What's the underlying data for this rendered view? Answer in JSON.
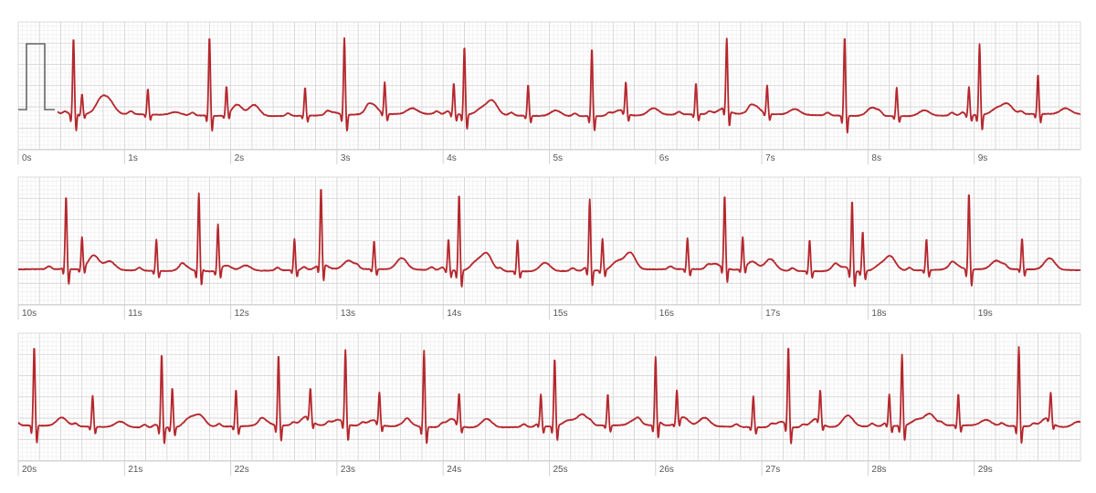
{
  "colors": {
    "trace": "#b5272d",
    "grid_minor": "#ececec",
    "grid_major": "#d2d2d2",
    "calibration": "#666666",
    "label": "#555555"
  },
  "chart_data": {
    "type": "line",
    "title": "",
    "xlabel": "",
    "ylabel": "",
    "seconds_per_strip": 10,
    "strips": [
      {
        "tick_labels": [
          "0s",
          "1s",
          "2s",
          "3s",
          "4s",
          "5s",
          "6s",
          "7s",
          "8s",
          "9s"
        ],
        "beats": [
          {
            "t": 0.52,
            "r": 1.35,
            "p": 0.05,
            "tw": 0.25
          },
          {
            "t": 0.6,
            "r": 0.35,
            "p": 0.05,
            "tw": 0.2
          },
          {
            "t": 1.22,
            "r": 0.45,
            "p": 0.05,
            "tw": 0.05
          },
          {
            "t": 1.8,
            "r": 1.35,
            "p": 0.05,
            "tw": 0.2
          },
          {
            "t": 1.96,
            "r": 0.5,
            "p": 0.05,
            "tw": 0.2
          },
          {
            "t": 2.7,
            "r": 0.5,
            "p": 0.05,
            "tw": 0.05
          },
          {
            "t": 3.07,
            "r": 1.35,
            "p": 0.05,
            "tw": 0.18
          },
          {
            "t": 3.45,
            "r": 0.55,
            "p": 0.05,
            "tw": 0.1
          },
          {
            "t": 4.1,
            "r": 0.55,
            "p": 0.05,
            "tw": 0.1
          },
          {
            "t": 4.2,
            "r": 1.2,
            "p": 0.05,
            "tw": 0.25
          },
          {
            "t": 4.8,
            "r": 0.55,
            "p": 0.05,
            "tw": 0.1
          },
          {
            "t": 5.4,
            "r": 1.2,
            "p": 0.05,
            "tw": 0.1
          },
          {
            "t": 5.72,
            "r": 0.55,
            "p": 0.05,
            "tw": 0.12
          },
          {
            "t": 6.38,
            "r": 0.55,
            "p": 0.05,
            "tw": 0.1
          },
          {
            "t": 6.67,
            "r": 1.25,
            "p": 0.05,
            "tw": 0.15
          },
          {
            "t": 7.05,
            "r": 0.5,
            "p": 0.05,
            "tw": 0.1
          },
          {
            "t": 7.78,
            "r": 1.4,
            "p": 0.05,
            "tw": 0.15
          },
          {
            "t": 8.27,
            "r": 0.5,
            "p": 0.05,
            "tw": 0.1
          },
          {
            "t": 8.95,
            "r": 0.5,
            "p": 0.05,
            "tw": 0.1
          },
          {
            "t": 9.05,
            "r": 1.25,
            "p": 0.05,
            "tw": 0.18
          },
          {
            "t": 9.6,
            "r": 0.7,
            "p": 0.05,
            "tw": 0.1
          }
        ]
      },
      {
        "tick_labels": [
          "10s",
          "11s",
          "12s",
          "13s",
          "14s",
          "15s",
          "16s",
          "17s",
          "18s",
          "19s"
        ],
        "beats": [
          {
            "t": 0.45,
            "r": 1.25,
            "p": 0.05,
            "tw": 0.25
          },
          {
            "t": 0.6,
            "r": 0.55,
            "p": 0.05,
            "tw": 0.15
          },
          {
            "t": 1.3,
            "r": 0.55,
            "p": 0.05,
            "tw": 0.1
          },
          {
            "t": 1.7,
            "r": 1.35,
            "p": 0.05,
            "tw": 0.1
          },
          {
            "t": 1.88,
            "r": 0.8,
            "p": 0.05,
            "tw": 0.1
          },
          {
            "t": 2.6,
            "r": 0.55,
            "p": 0.05,
            "tw": 0.1
          },
          {
            "t": 2.85,
            "r": 1.35,
            "p": 0.05,
            "tw": 0.15
          },
          {
            "t": 3.35,
            "r": 0.5,
            "p": 0.05,
            "tw": 0.2
          },
          {
            "t": 4.05,
            "r": 0.55,
            "p": 0.05,
            "tw": 0.15
          },
          {
            "t": 4.15,
            "r": 1.35,
            "p": 0.05,
            "tw": 0.3
          },
          {
            "t": 4.7,
            "r": 0.55,
            "p": 0.05,
            "tw": 0.15
          },
          {
            "t": 5.38,
            "r": 1.25,
            "p": 0.05,
            "tw": 0.15
          },
          {
            "t": 5.5,
            "r": 0.55,
            "p": 0.05,
            "tw": 0.3
          },
          {
            "t": 6.3,
            "r": 0.55,
            "p": 0.05,
            "tw": 0.1
          },
          {
            "t": 6.65,
            "r": 1.25,
            "p": 0.05,
            "tw": 0.15
          },
          {
            "t": 6.82,
            "r": 0.55,
            "p": 0.05,
            "tw": 0.2
          },
          {
            "t": 7.45,
            "r": 0.55,
            "p": 0.05,
            "tw": 0.1
          },
          {
            "t": 7.85,
            "r": 1.25,
            "p": 0.05,
            "tw": 0.1
          },
          {
            "t": 7.95,
            "r": 0.7,
            "p": 0.05,
            "tw": 0.25
          },
          {
            "t": 8.55,
            "r": 0.55,
            "p": 0.05,
            "tw": 0.1
          },
          {
            "t": 8.95,
            "r": 1.35,
            "p": 0.05,
            "tw": 0.15
          },
          {
            "t": 9.45,
            "r": 0.55,
            "p": 0.05,
            "tw": 0.2
          }
        ]
      },
      {
        "tick_labels": [
          "20s",
          "21s",
          "22s",
          "23s",
          "24s",
          "25s",
          "26s",
          "27s",
          "28s",
          "29s"
        ],
        "beats": [
          {
            "t": 0.15,
            "r": 1.4,
            "p": 0.05,
            "tw": 0.15
          },
          {
            "t": 0.7,
            "r": 0.55,
            "p": 0.05,
            "tw": 0.1
          },
          {
            "t": 1.35,
            "r": 1.3,
            "p": 0.05,
            "tw": 0.15
          },
          {
            "t": 1.45,
            "r": 0.7,
            "p": 0.05,
            "tw": 0.2
          },
          {
            "t": 2.05,
            "r": 0.65,
            "p": 0.05,
            "tw": 0.1
          },
          {
            "t": 2.45,
            "r": 1.25,
            "p": 0.05,
            "tw": 0.15
          },
          {
            "t": 2.75,
            "r": 0.55,
            "p": 0.05,
            "tw": 0.1
          },
          {
            "t": 3.08,
            "r": 1.3,
            "p": 0.05,
            "tw": 0.1
          },
          {
            "t": 3.4,
            "r": 0.55,
            "p": 0.05,
            "tw": 0.1
          },
          {
            "t": 3.82,
            "r": 1.35,
            "p": 0.05,
            "tw": 0.15
          },
          {
            "t": 4.15,
            "r": 0.55,
            "p": 0.05,
            "tw": 0.15
          },
          {
            "t": 4.92,
            "r": 0.55,
            "p": 0.05,
            "tw": 0.1
          },
          {
            "t": 5.05,
            "r": 1.2,
            "p": 0.05,
            "tw": 0.2
          },
          {
            "t": 5.55,
            "r": 0.55,
            "p": 0.05,
            "tw": 0.1
          },
          {
            "t": 6.0,
            "r": 1.2,
            "p": 0.05,
            "tw": 0.15
          },
          {
            "t": 6.2,
            "r": 0.55,
            "p": 0.05,
            "tw": 0.15
          },
          {
            "t": 6.92,
            "r": 0.55,
            "p": 0.05,
            "tw": 0.1
          },
          {
            "t": 7.25,
            "r": 1.4,
            "p": 0.05,
            "tw": 0.15
          },
          {
            "t": 7.55,
            "r": 0.55,
            "p": 0.05,
            "tw": 0.2
          },
          {
            "t": 8.2,
            "r": 0.55,
            "p": 0.05,
            "tw": 0.1
          },
          {
            "t": 8.32,
            "r": 1.25,
            "p": 0.05,
            "tw": 0.2
          },
          {
            "t": 8.85,
            "r": 0.55,
            "p": 0.05,
            "tw": 0.1
          },
          {
            "t": 9.42,
            "r": 1.4,
            "p": 0.05,
            "tw": 0.15
          },
          {
            "t": 9.72,
            "r": 0.5,
            "p": 0.05,
            "tw": 0.1
          }
        ]
      }
    ]
  }
}
